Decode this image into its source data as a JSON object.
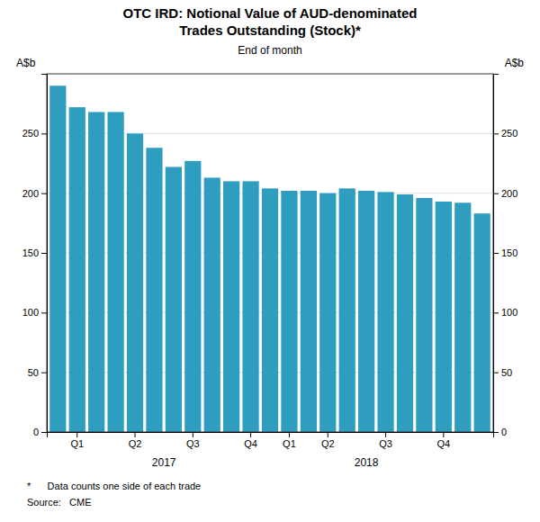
{
  "chart_data": {
    "type": "bar",
    "title": [
      "OTC IRD: Notional Value of AUD-denominated",
      "Trades Outstanding (Stock)*"
    ],
    "subtitle": "End of month",
    "ylabel": "A$b",
    "y2label": "A$b",
    "categories": [
      null,
      "Q1",
      null,
      null,
      "Q2",
      null,
      null,
      "Q3",
      null,
      null,
      "Q4",
      null,
      "Q1",
      null,
      "Q2",
      null,
      null,
      "Q3",
      null,
      null,
      "Q4",
      null,
      null
    ],
    "values": [
      290,
      272,
      268,
      268,
      250,
      238,
      222,
      227,
      213,
      210,
      210,
      204,
      202,
      202,
      200,
      204,
      202,
      201,
      199,
      196,
      193,
      192,
      183
    ],
    "color": "#2e9dbf",
    "ylim": [
      0,
      300
    ],
    "yticks": [
      0,
      50,
      100,
      150,
      200,
      250
    ],
    "y2lim": [
      0,
      300
    ],
    "y2ticks": [
      0,
      50,
      100,
      150,
      200,
      250
    ],
    "grid": true,
    "annotations": [
      {
        "text": "2017"
      },
      {
        "text": "2018"
      }
    ],
    "footnotes": [
      "*      Data counts one side of each trade",
      "Source:   CME"
    ]
  }
}
